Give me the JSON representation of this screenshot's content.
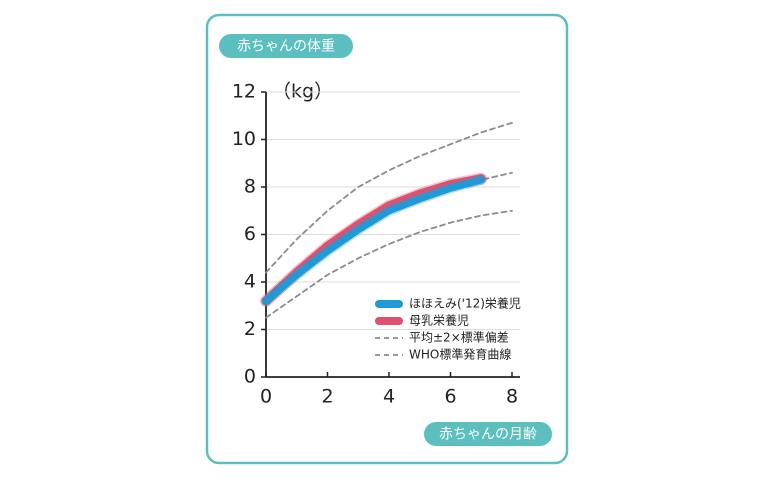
{
  "chart_data": {
    "type": "line",
    "title": "赤ちゃんの体重",
    "x_label": "赤ちゃんの月齢",
    "y_label": "（kg）",
    "x": [
      0,
      1,
      2,
      3,
      4,
      5,
      6,
      7,
      8
    ],
    "xlim": [
      0,
      8
    ],
    "xticks": [
      0,
      2,
      4,
      6,
      8
    ],
    "ylim": [
      0,
      12
    ],
    "yticks": [
      0,
      2,
      4,
      6,
      8,
      10,
      12
    ],
    "grid": true,
    "legend": "lower-right",
    "series": [
      {
        "name": "WHO標準発育曲線",
        "color": "#8c8c8c",
        "dashed": true,
        "width": 1.8,
        "values": [
          3.3,
          4.5,
          5.6,
          6.4,
          7.0,
          7.5,
          7.9,
          8.3,
          8.6
        ]
      },
      {
        "name": "平均±2×標準偏差",
        "color": "#8c8c8c",
        "dashed": true,
        "width": 1.8,
        "values": [
          4.4,
          5.8,
          7.0,
          8.0,
          8.7,
          9.3,
          9.8,
          10.3,
          10.7
        ]
      },
      {
        "name": null,
        "color": "#8c8c8c",
        "dashed": true,
        "width": 1.8,
        "values": [
          2.5,
          3.4,
          4.3,
          5.0,
          5.6,
          6.1,
          6.5,
          6.8,
          7.0
        ]
      },
      {
        "name": "母乳栄養児",
        "color": "#e0506e",
        "dashed": false,
        "width": 9,
        "values": [
          3.2,
          4.4,
          5.5,
          6.4,
          7.2,
          7.7,
          8.1,
          8.35,
          null
        ]
      },
      {
        "name": "ほほえみ('12)栄養児",
        "color": "#1f9ad6",
        "dashed": false,
        "width": 7,
        "values": [
          3.2,
          4.3,
          5.3,
          6.2,
          7.0,
          7.5,
          7.95,
          8.3,
          null
        ]
      }
    ]
  }
}
